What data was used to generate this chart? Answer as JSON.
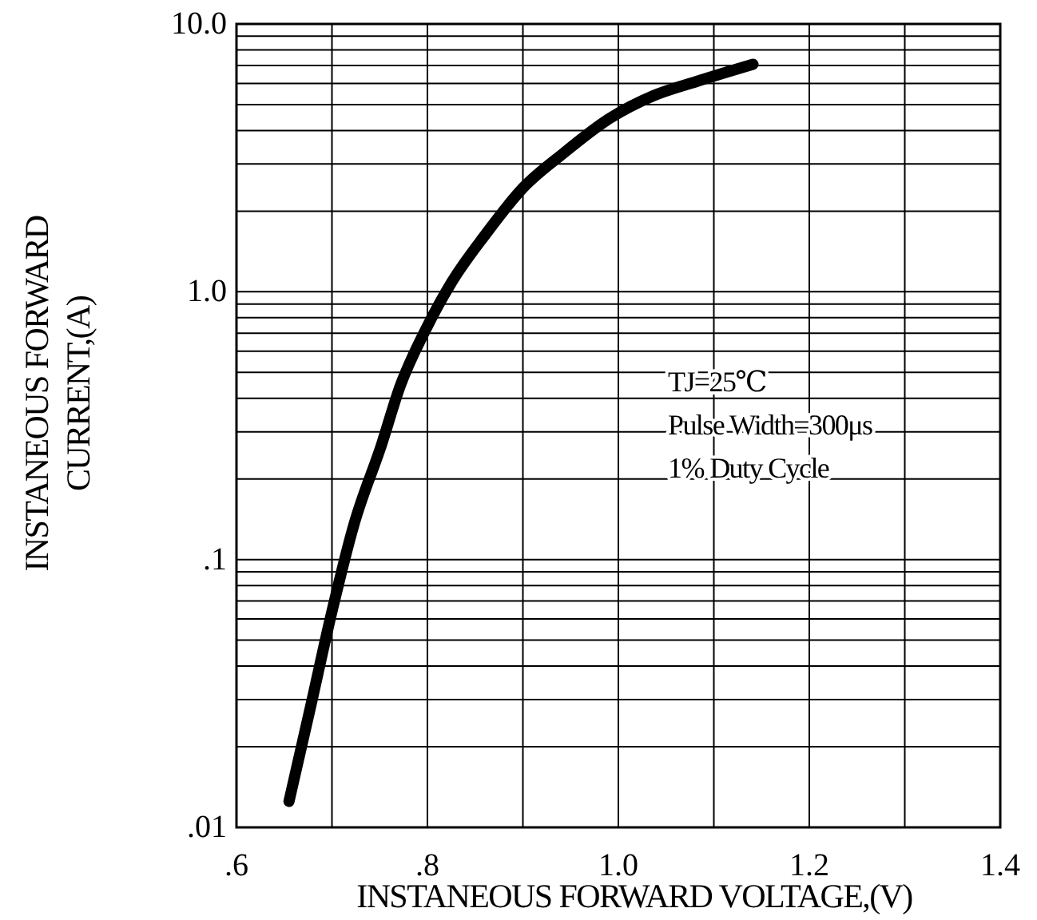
{
  "chart_data": {
    "type": "line",
    "xlabel": "INSTANEOUS FORWARD VOLTAGE,(V)",
    "ylabel": "INSTANEOUS FORWARD\nCURRENT,(A)",
    "log": "y",
    "grid": true,
    "line_style": "solid",
    "marker": "none",
    "xlim": [
      0.6,
      1.4
    ],
    "xticks": [
      {
        "value": 0.6,
        "label": ".6"
      },
      {
        "value": 0.7,
        "label": null
      },
      {
        "value": 0.8,
        "label": ".8"
      },
      {
        "value": 0.9,
        "label": null
      },
      {
        "value": 1.0,
        "label": "1.0"
      },
      {
        "value": 1.1,
        "label": null
      },
      {
        "value": 1.2,
        "label": "1.2"
      },
      {
        "value": 1.3,
        "label": null
      },
      {
        "value": 1.4,
        "label": "1.4"
      }
    ],
    "ylim": [
      0.01,
      10
    ],
    "yticks": [
      {
        "value": 0.01,
        "label": ".01"
      },
      {
        "value": 0.02,
        "label": null
      },
      {
        "value": 0.03,
        "label": null
      },
      {
        "value": 0.04,
        "label": null
      },
      {
        "value": 0.05,
        "label": null
      },
      {
        "value": 0.06,
        "label": null
      },
      {
        "value": 0.07,
        "label": null
      },
      {
        "value": 0.08,
        "label": null
      },
      {
        "value": 0.09,
        "label": null
      },
      {
        "value": 0.1,
        "label": ".1"
      },
      {
        "value": 0.2,
        "label": null
      },
      {
        "value": 0.3,
        "label": null
      },
      {
        "value": 0.4,
        "label": null
      },
      {
        "value": 0.5,
        "label": null
      },
      {
        "value": 0.6,
        "label": null
      },
      {
        "value": 0.7,
        "label": null
      },
      {
        "value": 0.8,
        "label": null
      },
      {
        "value": 0.9,
        "label": null
      },
      {
        "value": 1,
        "label": "1.0"
      },
      {
        "value": 2,
        "label": null
      },
      {
        "value": 3,
        "label": null
      },
      {
        "value": 4,
        "label": null
      },
      {
        "value": 5,
        "label": null
      },
      {
        "value": 6,
        "label": null
      },
      {
        "value": 7,
        "label": null
      },
      {
        "value": 8,
        "label": null
      },
      {
        "value": 9,
        "label": null
      },
      {
        "value": 10,
        "label": "10.0"
      }
    ],
    "x": [
      0.655,
      0.677,
      0.7,
      0.723,
      0.752,
      0.771,
      0.798,
      0.825,
      0.861,
      0.9,
      0.942,
      0.99,
      1.036,
      1.082,
      1.141
    ],
    "series": [
      {
        "color": "#000000",
        "values": [
          0.0125,
          0.0276,
          0.064,
          0.135,
          0.269,
          0.44,
          0.72,
          1.08,
          1.64,
          2.44,
          3.28,
          4.42,
          5.38,
          6.1,
          7.07
        ]
      }
    ],
    "annotations": [
      "TJ=25℃",
      "Pulse Width=300μs",
      "1% Duty Cycle"
    ]
  }
}
